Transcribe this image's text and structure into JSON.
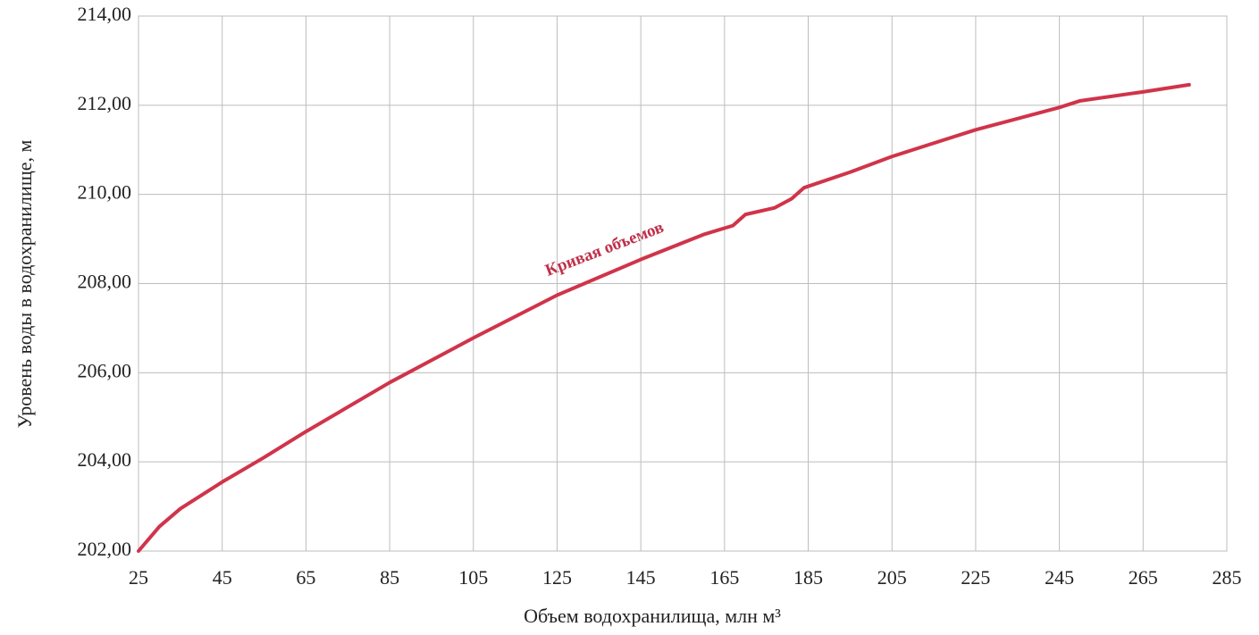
{
  "chart_data": {
    "type": "line",
    "x_label": "Объем водохранилища, млн м³",
    "y_label": "Уровень воды в водохранилище, м",
    "annotation": "Кривая объемов",
    "series": [
      {
        "color": "#d0344a",
        "x": [
          25,
          30,
          35,
          45,
          55,
          65,
          85,
          105,
          125,
          145,
          160,
          167,
          170,
          177,
          181,
          184,
          195,
          205,
          215,
          225,
          245,
          250,
          265,
          276
        ],
        "values": [
          202.0,
          202.55,
          202.95,
          203.55,
          204.1,
          204.68,
          205.78,
          206.78,
          207.74,
          208.54,
          209.1,
          209.3,
          209.55,
          209.7,
          209.9,
          210.15,
          210.5,
          210.85,
          211.15,
          211.45,
          211.95,
          212.1,
          212.3,
          212.46
        ]
      }
    ],
    "xlim": [
      25,
      285
    ],
    "xticks": [
      25,
      45,
      65,
      85,
      105,
      125,
      145,
      165,
      185,
      205,
      225,
      245,
      265,
      285
    ],
    "ylim": [
      202,
      214
    ],
    "yticks": [
      {
        "value": 202,
        "label": "202,00"
      },
      {
        "value": 204,
        "label": "204,00"
      },
      {
        "value": 206,
        "label": "206,00"
      },
      {
        "value": 208,
        "label": "208,00"
      },
      {
        "value": 210,
        "label": "210,00"
      },
      {
        "value": 212,
        "label": "212,00"
      },
      {
        "value": 214,
        "label": "214,00"
      }
    ],
    "grid": true
  }
}
